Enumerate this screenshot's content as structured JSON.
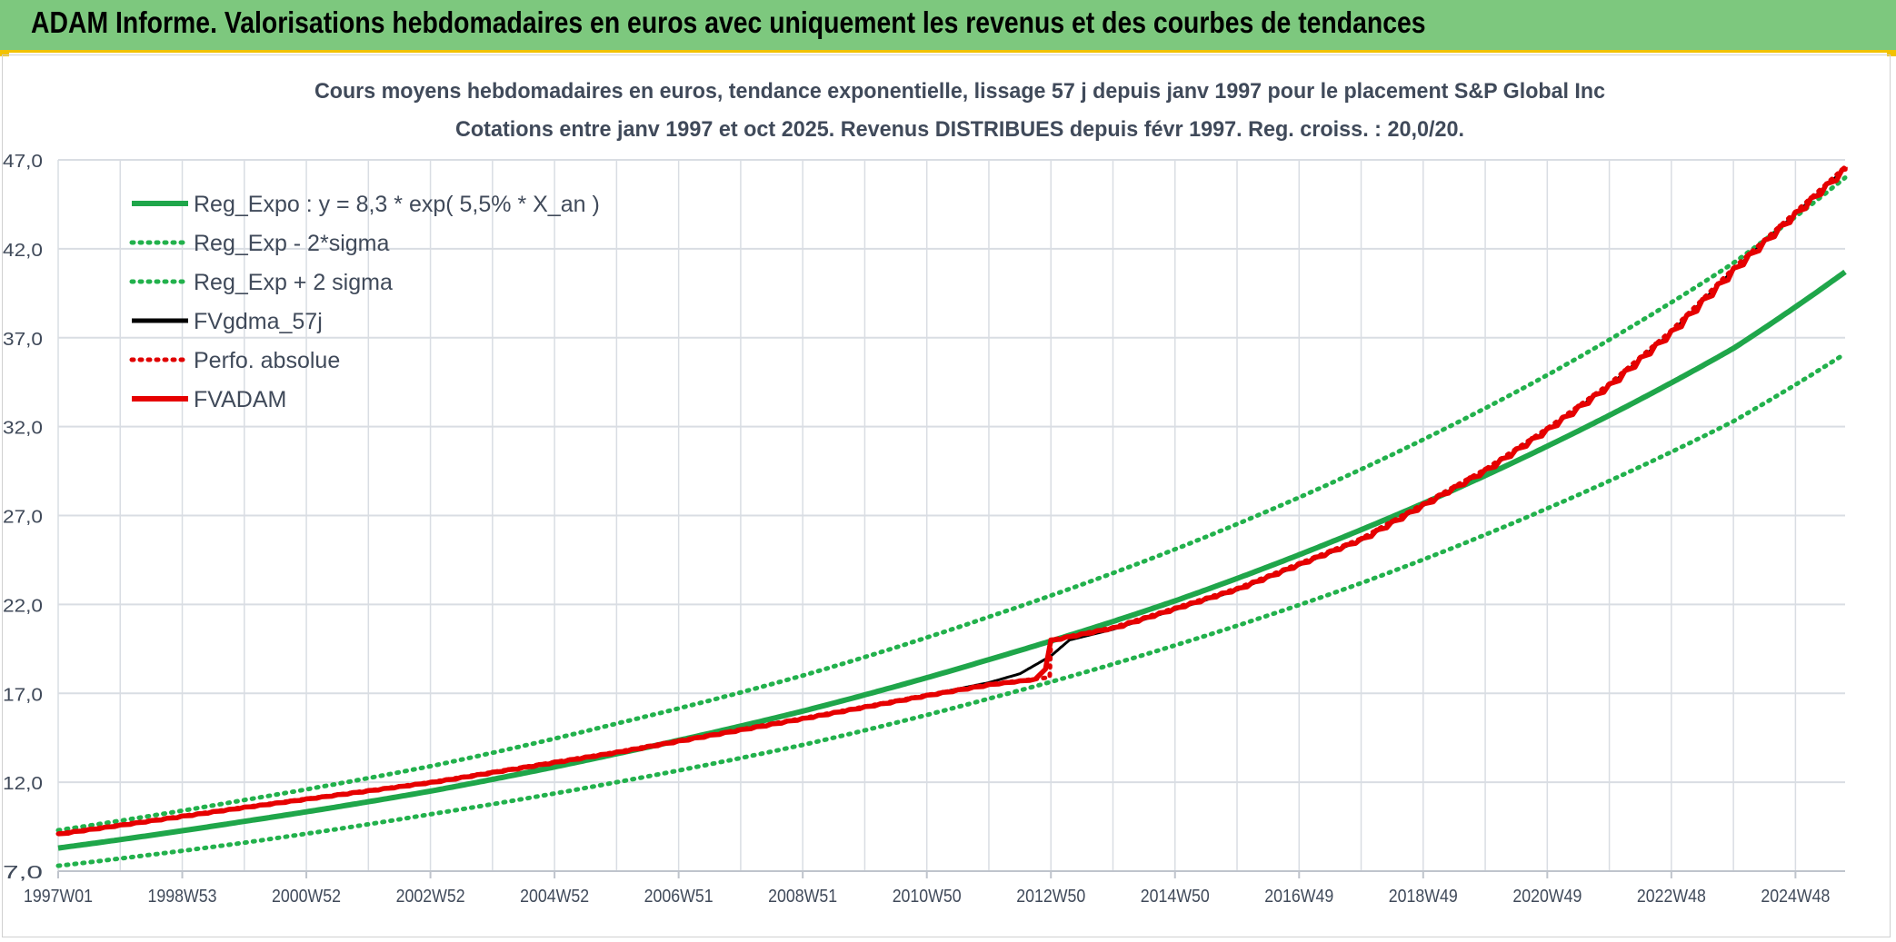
{
  "header": {
    "title": "ADAM Informe. Valorisations hebdomadaires en euros avec uniquement les revenus et des courbes de tendances"
  },
  "colors": {
    "banner": "#7dc87e",
    "accent": "#f2c200",
    "trend": "#1fa64a",
    "band": "#22b14c",
    "fvgdma": "#000000",
    "perfo": "#e00000",
    "fvadam": "#e60000",
    "grid": "#d9dde3",
    "text": "#404a5a"
  },
  "chart_data": {
    "type": "line",
    "title": "Cours moyens hebdomadaires en euros, tendance exponentielle, lissage 57 j depuis janv 1997 pour le placement S&P Global Inc",
    "subtitle": "Cotations entre janv 1997 et oct 2025. Revenus DISTRIBUES depuis févr 1997. Reg. croiss. : 20,0/20.",
    "xlabel": "",
    "ylabel": "",
    "ylim": [
      7.0,
      47.0
    ],
    "yticks": [
      "47,0",
      "42,0",
      "37,0",
      "32,0",
      "27,0",
      "22,0",
      "17,0",
      "12,0",
      "7,0"
    ],
    "xlim": [
      1997.0,
      2025.8
    ],
    "xticks": [
      {
        "label": "1997W01",
        "year": 1997.0
      },
      {
        "label": "1998W53",
        "year": 1999.0
      },
      {
        "label": "2000W52",
        "year": 2001.0
      },
      {
        "label": "2002W52",
        "year": 2003.0
      },
      {
        "label": "2004W52",
        "year": 2005.0
      },
      {
        "label": "2006W51",
        "year": 2007.0
      },
      {
        "label": "2008W51",
        "year": 2009.0
      },
      {
        "label": "2010W50",
        "year": 2011.0
      },
      {
        "label": "2012W50",
        "year": 2013.0
      },
      {
        "label": "2014W50",
        "year": 2015.0
      },
      {
        "label": "2016W49",
        "year": 2017.0
      },
      {
        "label": "2018W49",
        "year": 2019.0
      },
      {
        "label": "2020W49",
        "year": 2021.0
      },
      {
        "label": "2022W48",
        "year": 2023.0
      },
      {
        "label": "2024W48",
        "year": 2025.0
      }
    ],
    "grid": true,
    "legend_position": "top-left",
    "series": [
      {
        "name": "Reg_Expo : y = 8,3 * exp( 5,5% *  X_an )",
        "style": "solid-thick",
        "color": "#1fa64a",
        "x": [
          1997.0,
          2000.0,
          2003.0,
          2006.0,
          2009.0,
          2012.0,
          2015.0,
          2018.0,
          2021.0,
          2024.0,
          2025.8
        ],
        "y": [
          8.3,
          9.8,
          11.5,
          13.6,
          16.0,
          18.9,
          22.2,
          26.2,
          30.9,
          36.4,
          40.7
        ]
      },
      {
        "name": "Reg_Exp - 2*sigma",
        "style": "dotted",
        "color": "#22b14c",
        "x": [
          1997.0,
          2000.0,
          2003.0,
          2006.0,
          2009.0,
          2012.0,
          2015.0,
          2018.0,
          2021.0,
          2024.0,
          2025.8
        ],
        "y": [
          7.3,
          8.6,
          10.2,
          12.0,
          14.1,
          16.7,
          19.7,
          23.2,
          27.4,
          32.3,
          36.1
        ]
      },
      {
        "name": "Reg_Exp + 2 sigma",
        "style": "dotted",
        "color": "#22b14c",
        "x": [
          1997.0,
          2000.0,
          2003.0,
          2006.0,
          2009.0,
          2012.0,
          2015.0,
          2018.0,
          2021.0,
          2024.0,
          2025.8
        ],
        "y": [
          9.3,
          11.0,
          12.9,
          15.3,
          18.0,
          21.3,
          25.1,
          29.6,
          34.9,
          41.2,
          46.0
        ]
      },
      {
        "name": "FVgdma_57j",
        "style": "solid",
        "color": "#000000",
        "x": [
          1997.0,
          2000.0,
          2003.0,
          2006.0,
          2009.0,
          2011.0,
          2012.0,
          2012.5,
          2013.0,
          2013.3,
          2014.0,
          2016.0,
          2018.0,
          2020.0,
          2021.0,
          2022.0,
          2023.0,
          2024.0,
          2025.8
        ],
        "y": [
          9.1,
          10.6,
          12.0,
          13.7,
          15.6,
          16.9,
          17.6,
          18.1,
          19.1,
          20.0,
          20.6,
          22.8,
          25.6,
          29.5,
          31.8,
          34.3,
          37.3,
          40.8,
          46.5
        ]
      },
      {
        "name": "Perfo. absolue",
        "style": "dotted",
        "color": "#e00000",
        "x": [
          1997.0,
          2000.0,
          2003.0,
          2006.0,
          2009.0,
          2011.0,
          2012.0,
          2012.98,
          2013.0,
          2014.0,
          2016.0,
          2018.0,
          2020.0,
          2021.0,
          2022.0,
          2023.0,
          2024.0,
          2025.8
        ],
        "y": [
          9.1,
          10.6,
          12.0,
          13.7,
          15.6,
          16.9,
          17.5,
          17.9,
          20.0,
          20.7,
          22.9,
          25.7,
          29.6,
          31.9,
          34.4,
          37.4,
          40.9,
          46.6
        ]
      },
      {
        "name": "FVADAM",
        "style": "solid-thick-stepped",
        "color": "#e60000",
        "x": [
          1997.0,
          2000.0,
          2003.0,
          2006.0,
          2009.0,
          2011.0,
          2012.0,
          2012.98,
          2013.0,
          2014.0,
          2016.0,
          2018.0,
          2020.0,
          2021.0,
          2022.0,
          2023.0,
          2024.0,
          2025.8
        ],
        "y": [
          9.1,
          10.6,
          12.0,
          13.7,
          15.6,
          16.9,
          17.5,
          17.9,
          20.0,
          20.7,
          22.9,
          25.7,
          29.6,
          31.9,
          34.4,
          37.4,
          40.9,
          46.6
        ]
      }
    ]
  }
}
